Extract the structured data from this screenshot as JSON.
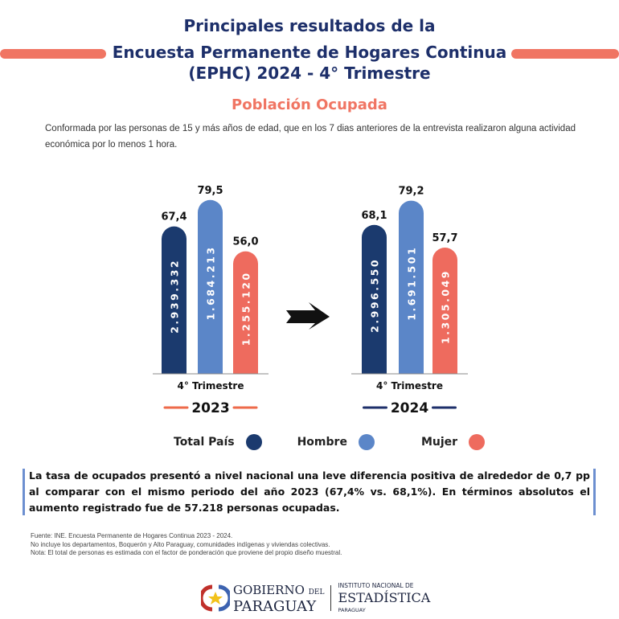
{
  "header": {
    "line1": "Principales resultados de la",
    "line2": "Encuesta Permanente de Hogares Continua",
    "line3": "(EPHC) 2024 - 4° Trimestre"
  },
  "subtitle": "Población Ocupada",
  "description": "Conformada por las personas de 15 y más años de edad, que en los 7 dias anteriores de la entrevista realizaron alguna actividad económica por lo menos 1 hora.",
  "colors": {
    "total": "#1b3a6e",
    "hombre": "#5b86c8",
    "mujer": "#ee6b5e",
    "y2023": "#ee6a4a",
    "y2024": "#1d2f6a"
  },
  "chart_data": [
    {
      "type": "bar",
      "title": "2023",
      "xlabel": "4° Trimestre",
      "categories": [
        "Total País",
        "Hombre",
        "Mujer"
      ],
      "values": [
        67.4,
        79.5,
        56.0
      ],
      "value_labels": [
        "67,4",
        "79,5",
        "56,0"
      ],
      "persons": [
        "2.939.332",
        "1.684.213",
        "1.255.120"
      ]
    },
    {
      "type": "bar",
      "title": "2024",
      "xlabel": "4° Trimestre",
      "categories": [
        "Total País",
        "Hombre",
        "Mujer"
      ],
      "values": [
        68.1,
        79.2,
        57.7
      ],
      "value_labels": [
        "68,1",
        "79,2",
        "57,7"
      ],
      "persons": [
        "2.996.550",
        "1.691.501",
        "1.305.049"
      ]
    }
  ],
  "legend": [
    "Total País",
    "Hombre",
    "Mujer"
  ],
  "note": "La tasa de ocupados  presentó a nivel nacional una leve diferencia positiva de alrededor de 0,7 pp al comparar con el mismo periodo del año 2023 (67,4% vs. 68,1%). En términos absolutos el aumento registrado fue de 57.218 personas ocupadas.",
  "sources": [
    "Fuente: INE. Encuesta Permanente de Hogares Continua 2023 - 2024.",
    "No incluye los departamentos, Boquerón y Alto Paraguay, comunidades indígenas y viviendas colectivas.",
    "Nota: El total de personas es estimada con el factor de ponderación que proviene del propio diseño muestral."
  ],
  "logos": {
    "gob1": "GOBIERNO",
    "gob_del": "DEL",
    "gob2": "PARAGUAY",
    "ine1": "INSTITUTO NACIONAL DE",
    "ine2": "ESTADÍSTICA",
    "ine3": "PARAGUAY"
  }
}
